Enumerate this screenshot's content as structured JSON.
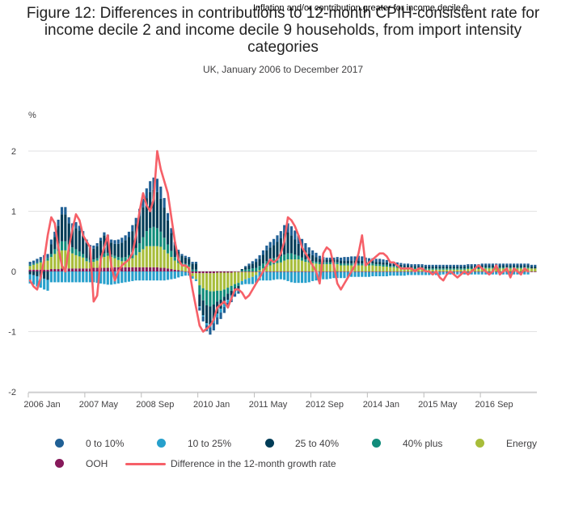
{
  "title": "Figure 12: Differences in contributions to 12-month CPIH-consistent rate for income decile 2 and income decile 9 households, from import intensity categories",
  "annotation": "Inflation and/or contribution greater for income decile 9",
  "subtitle": "UK, January 2006 to December 2017",
  "y_unit": "%",
  "colors": {
    "c0_10": "#206095",
    "c10_25": "#27a0cc",
    "c25_40": "#003c57",
    "c40plus": "#118c7b",
    "energy": "#a8bd3a",
    "ooh": "#871a5b",
    "diff": "#f66068"
  },
  "legend": [
    {
      "label": "0 to 10%",
      "color": "#206095"
    },
    {
      "label": "10 to 25%",
      "color": "#27a0cc"
    },
    {
      "label": "25 to 40%",
      "color": "#003c57"
    },
    {
      "label": "40% plus",
      "color": "#118c7b"
    },
    {
      "label": "Energy",
      "color": "#a8bd3a"
    },
    {
      "label": "OOH",
      "color": "#871a5b"
    },
    {
      "label": "Difference in the 12-month growth rate",
      "color": "#f66068"
    }
  ],
  "chart_data": {
    "type": "bar",
    "stacked": true,
    "x_start": "2006-01",
    "x_end": "2017-12",
    "x_ticks": [
      "2006 Jan",
      "2007 May",
      "2008 Sep",
      "2010 Jan",
      "2011 May",
      "2012 Sep",
      "2014 Jan",
      "2015 May",
      "2016 Sep"
    ],
    "y_ticks": [
      "-2",
      "-1",
      "0",
      "1",
      "2"
    ],
    "ylim": [
      -2,
      2.2
    ],
    "grid": true,
    "legend_position": "bottom",
    "series": [
      {
        "name": "0 to 10%",
        "values": [
          0.05,
          0.05,
          0.06,
          0.06,
          0.07,
          0.07,
          0.08,
          0.09,
          0.1,
          0.12,
          0.12,
          0.1,
          0.1,
          0.1,
          0.08,
          0.08,
          0.06,
          0.05,
          0.05,
          0.05,
          0.05,
          0.05,
          0.05,
          0.05,
          0.06,
          0.07,
          0.08,
          0.08,
          0.09,
          0.1,
          0.1,
          0.12,
          0.14,
          0.16,
          0.18,
          0.2,
          0.22,
          0.2,
          0.16,
          0.12,
          0.08,
          0.05,
          0.03,
          0.03,
          0.03,
          0.03,
          0.03,
          0.03,
          -0.05,
          -0.08,
          -0.1,
          -0.12,
          -0.12,
          -0.12,
          -0.11,
          -0.1,
          -0.08,
          -0.06,
          -0.05,
          -0.04,
          0.0,
          0.02,
          0.03,
          0.04,
          0.05,
          0.06,
          0.07,
          0.08,
          0.09,
          0.1,
          0.11,
          0.12,
          0.14,
          0.15,
          0.15,
          0.15,
          0.14,
          0.13,
          0.12,
          0.1,
          0.08,
          0.07,
          0.05,
          0.04,
          0.03,
          0.03,
          0.03,
          0.04,
          0.05,
          0.06,
          0.06,
          0.07,
          0.07,
          0.08,
          0.07,
          0.06,
          0.05,
          0.05,
          0.05,
          0.05,
          0.05,
          0.04,
          0.04,
          0.04,
          0.04,
          0.03,
          0.03,
          0.03,
          0.03,
          0.03,
          0.03,
          0.03,
          0.03,
          0.03,
          0.03,
          0.03,
          0.03,
          0.03,
          0.03,
          0.03,
          0.03,
          0.03,
          0.03,
          0.03,
          0.03,
          0.03,
          0.03,
          0.03,
          0.03,
          0.03,
          0.03,
          0.03,
          0.03,
          0.03,
          0.03,
          0.03,
          0.03,
          0.03,
          0.03,
          0.03,
          0.03,
          0.03,
          0.03,
          0.03
        ]
      },
      {
        "name": "10 to 25%",
        "values": [
          -0.15,
          -0.16,
          -0.17,
          -0.17,
          -0.18,
          -0.18,
          -0.18,
          -0.18,
          -0.18,
          -0.18,
          -0.18,
          -0.18,
          -0.18,
          -0.18,
          -0.18,
          -0.18,
          -0.18,
          -0.18,
          -0.18,
          -0.19,
          -0.2,
          -0.21,
          -0.22,
          -0.22,
          -0.21,
          -0.2,
          -0.19,
          -0.18,
          -0.17,
          -0.16,
          -0.15,
          -0.15,
          -0.15,
          -0.15,
          -0.15,
          -0.15,
          -0.15,
          -0.15,
          -0.15,
          -0.14,
          -0.13,
          -0.12,
          -0.1,
          -0.08,
          -0.06,
          -0.05,
          -0.04,
          -0.03,
          -0.02,
          -0.02,
          -0.03,
          -0.05,
          -0.06,
          -0.06,
          -0.06,
          -0.05,
          -0.05,
          -0.05,
          -0.04,
          -0.04,
          -0.06,
          -0.08,
          -0.1,
          -0.12,
          -0.13,
          -0.14,
          -0.14,
          -0.14,
          -0.14,
          -0.13,
          -0.12,
          -0.12,
          -0.13,
          -0.15,
          -0.17,
          -0.18,
          -0.18,
          -0.18,
          -0.18,
          -0.17,
          -0.15,
          -0.14,
          -0.13,
          -0.12,
          -0.12,
          -0.11,
          -0.1,
          -0.1,
          -0.1,
          -0.1,
          -0.09,
          -0.08,
          -0.08,
          -0.08,
          -0.08,
          -0.08,
          -0.08,
          -0.07,
          -0.07,
          -0.07,
          -0.07,
          -0.07,
          -0.06,
          -0.06,
          -0.06,
          -0.06,
          -0.06,
          -0.05,
          -0.05,
          -0.05,
          -0.05,
          -0.05,
          -0.05,
          -0.05,
          -0.05,
          -0.05,
          -0.05,
          -0.04,
          -0.04,
          -0.04,
          -0.04,
          -0.04,
          -0.04,
          -0.04,
          -0.04,
          -0.04,
          -0.04,
          -0.04,
          -0.04,
          -0.04,
          -0.04,
          -0.04,
          -0.04,
          -0.04,
          -0.04,
          -0.04,
          -0.04,
          -0.04,
          -0.04,
          -0.04,
          -0.04,
          -0.04
        ]
      },
      {
        "name": "25 to 40%",
        "values": [
          -0.05,
          -0.06,
          -0.08,
          -0.1,
          -0.12,
          -0.14,
          0.16,
          0.2,
          0.3,
          0.45,
          0.45,
          0.35,
          0.3,
          0.35,
          0.35,
          0.3,
          0.25,
          0.2,
          0.18,
          0.2,
          0.25,
          0.3,
          0.25,
          0.2,
          0.2,
          0.22,
          0.25,
          0.28,
          0.3,
          0.35,
          0.4,
          0.45,
          0.5,
          0.55,
          0.6,
          0.62,
          0.6,
          0.55,
          0.5,
          0.4,
          0.3,
          0.2,
          0.15,
          0.12,
          0.1,
          0.1,
          0.1,
          0.1,
          -0.2,
          -0.25,
          -0.3,
          -0.3,
          -0.25,
          -0.2,
          -0.15,
          -0.12,
          -0.1,
          -0.08,
          -0.06,
          -0.05,
          0.02,
          0.04,
          0.06,
          0.08,
          0.1,
          0.12,
          0.15,
          0.18,
          0.2,
          0.22,
          0.25,
          0.3,
          0.35,
          0.35,
          0.3,
          0.25,
          0.2,
          0.18,
          0.15,
          0.12,
          0.1,
          0.08,
          0.06,
          0.05,
          0.05,
          0.05,
          0.05,
          0.05,
          0.05,
          0.05,
          0.05,
          0.05,
          0.05,
          0.05,
          0.05,
          0.04,
          0.04,
          0.04,
          0.04,
          0.04,
          0.04,
          0.04,
          0.03,
          0.03,
          0.03,
          0.03,
          0.03,
          0.03,
          0.03,
          0.03,
          0.03,
          0.03,
          0.03,
          0.03,
          0.03,
          0.03,
          0.03,
          0.03,
          0.03,
          0.03,
          0.03,
          0.03,
          0.03,
          0.03,
          0.03,
          0.03,
          0.03,
          0.03,
          0.03,
          0.03,
          0.03,
          0.03,
          0.03,
          0.03,
          0.03,
          0.03,
          0.03,
          0.03,
          0.03,
          0.03,
          0.03,
          0.03,
          0.03,
          0.03
        ]
      },
      {
        "name": "40% plus",
        "values": [
          0.02,
          0.02,
          0.02,
          0.03,
          0.03,
          0.04,
          0.05,
          0.08,
          0.12,
          0.15,
          0.15,
          0.12,
          0.1,
          0.1,
          0.08,
          0.06,
          0.05,
          0.04,
          0.04,
          0.04,
          0.05,
          0.06,
          0.05,
          0.04,
          0.04,
          0.05,
          0.06,
          0.07,
          0.08,
          0.1,
          0.12,
          0.15,
          0.2,
          0.25,
          0.3,
          0.32,
          0.3,
          0.25,
          0.2,
          0.15,
          0.1,
          0.06,
          0.04,
          0.03,
          0.03,
          0.03,
          0.03,
          0.03,
          -0.15,
          -0.2,
          -0.25,
          -0.25,
          -0.22,
          -0.18,
          -0.15,
          -0.12,
          -0.1,
          -0.08,
          -0.06,
          -0.05,
          0.02,
          0.03,
          0.04,
          0.05,
          0.06,
          0.07,
          0.08,
          0.09,
          0.1,
          0.1,
          0.1,
          0.1,
          0.1,
          0.1,
          0.1,
          0.08,
          0.06,
          0.05,
          0.04,
          0.03,
          0.03,
          0.03,
          0.03,
          0.03,
          0.03,
          0.03,
          0.03,
          0.03,
          0.03,
          0.03,
          0.03,
          0.03,
          0.03,
          0.03,
          0.03,
          0.03,
          0.03,
          0.03,
          0.03,
          0.03,
          0.03,
          0.03,
          0.02,
          0.02,
          0.02,
          0.02,
          0.02,
          0.02,
          0.02,
          0.02,
          0.02,
          0.02,
          0.02,
          0.02,
          0.02,
          0.02,
          0.02,
          0.02,
          0.02,
          0.02,
          0.02,
          0.02,
          0.02,
          0.02,
          0.02,
          0.02,
          0.02,
          0.02,
          0.02,
          0.02,
          0.02,
          0.02,
          0.02,
          0.02,
          0.02,
          0.02,
          0.02,
          0.02,
          0.02,
          0.02,
          0.02,
          0.02
        ]
      },
      {
        "name": "Energy",
        "values": [
          0.06,
          0.08,
          0.1,
          0.12,
          0.14,
          0.15,
          0.2,
          0.25,
          0.3,
          0.3,
          0.3,
          0.28,
          0.25,
          0.22,
          0.2,
          0.18,
          0.12,
          0.1,
          0.1,
          0.12,
          0.15,
          0.18,
          0.2,
          0.18,
          0.15,
          0.12,
          0.1,
          0.1,
          0.12,
          0.15,
          0.2,
          0.25,
          0.3,
          0.35,
          0.35,
          0.35,
          0.35,
          0.35,
          0.3,
          0.25,
          0.2,
          0.15,
          0.12,
          0.1,
          0.1,
          0.08,
          -0.05,
          -0.1,
          -0.2,
          -0.25,
          -0.28,
          -0.3,
          -0.3,
          -0.3,
          -0.3,
          -0.28,
          -0.25,
          -0.22,
          -0.2,
          -0.18,
          -0.15,
          -0.12,
          -0.1,
          -0.08,
          -0.05,
          0.02,
          0.05,
          0.08,
          0.1,
          0.12,
          0.14,
          0.15,
          0.18,
          0.2,
          0.2,
          0.2,
          0.2,
          0.18,
          0.16,
          0.15,
          0.14,
          0.13,
          0.12,
          0.12,
          0.12,
          0.12,
          0.12,
          0.12,
          0.1,
          0.1,
          0.1,
          0.1,
          0.1,
          0.1,
          0.1,
          0.1,
          0.1,
          0.1,
          0.09,
          0.09,
          0.08,
          0.08,
          0.07,
          0.07,
          0.06,
          0.06,
          0.05,
          0.05,
          0.04,
          0.04,
          0.04,
          0.04,
          0.03,
          0.03,
          0.03,
          0.03,
          0.03,
          0.03,
          0.03,
          0.03,
          0.03,
          0.03,
          0.03,
          0.03,
          0.04,
          0.04,
          0.04,
          0.04,
          0.05,
          0.05,
          0.05,
          0.05,
          0.05,
          0.05,
          0.05,
          0.05,
          0.05,
          0.05,
          0.05,
          0.05,
          0.05,
          0.05,
          0.05,
          0.05
        ]
      },
      {
        "name": "OOH",
        "values": [
          0.03,
          0.03,
          0.03,
          0.03,
          0.03,
          0.03,
          0.04,
          0.04,
          0.04,
          0.05,
          0.05,
          0.05,
          0.05,
          0.05,
          0.05,
          0.05,
          0.05,
          0.05,
          0.06,
          0.06,
          0.06,
          0.06,
          0.06,
          0.06,
          0.07,
          0.07,
          0.07,
          0.07,
          0.07,
          0.07,
          0.07,
          0.07,
          0.07,
          0.07,
          0.07,
          0.07,
          0.07,
          0.06,
          0.06,
          0.05,
          0.04,
          0.03,
          0.02,
          0.01,
          -0.01,
          -0.02,
          -0.03,
          -0.03,
          -0.03,
          -0.03,
          -0.03,
          -0.03,
          -0.03,
          -0.02,
          -0.02,
          -0.02,
          -0.02,
          -0.02,
          -0.01,
          -0.01,
          -0.01,
          -0.01,
          -0.01,
          -0.01,
          -0.01,
          -0.01,
          -0.01,
          -0.01,
          -0.01,
          -0.01,
          -0.01,
          -0.01,
          -0.01,
          -0.01,
          -0.01,
          -0.01,
          -0.01,
          -0.01,
          -0.01,
          -0.01,
          -0.01,
          -0.01,
          -0.01,
          -0.01,
          -0.01,
          -0.01,
          -0.01,
          -0.01,
          -0.01,
          -0.01,
          -0.01,
          -0.01,
          -0.01,
          -0.01,
          -0.01,
          -0.01,
          -0.01,
          -0.01,
          -0.01,
          -0.01,
          -0.01,
          -0.01,
          -0.01,
          -0.01,
          -0.01,
          -0.01,
          -0.01,
          -0.01,
          -0.01,
          -0.01,
          -0.01,
          -0.01,
          -0.01,
          -0.01,
          -0.01,
          -0.01,
          -0.01,
          -0.01,
          -0.01,
          -0.01,
          -0.01,
          -0.01,
          -0.01,
          -0.01,
          -0.01,
          -0.01,
          -0.01,
          -0.01,
          -0.01,
          -0.01,
          -0.01,
          -0.01,
          -0.01,
          -0.01,
          -0.01,
          -0.01,
          -0.01,
          -0.01,
          -0.01,
          -0.01,
          -0.01,
          -0.01,
          -0.01,
          -0.01
        ]
      },
      {
        "name": "Difference in the 12-month growth rate",
        "type": "line",
        "values": [
          -0.15,
          -0.25,
          -0.3,
          -0.1,
          0.2,
          0.6,
          0.9,
          0.8,
          0.4,
          0.1,
          0.0,
          0.4,
          0.7,
          0.95,
          0.85,
          0.6,
          0.5,
          0.4,
          -0.5,
          -0.4,
          0.2,
          0.4,
          0.6,
          0.1,
          -0.15,
          0.0,
          0.1,
          0.15,
          0.2,
          0.3,
          0.6,
          1.0,
          1.3,
          1.1,
          1.0,
          1.2,
          2.0,
          1.7,
          1.5,
          1.3,
          0.9,
          0.5,
          0.2,
          0.1,
          0.1,
          0.05,
          -0.3,
          -0.6,
          -0.9,
          -1.0,
          -0.95,
          -0.9,
          -0.8,
          -0.6,
          -0.55,
          -0.5,
          -0.6,
          -0.45,
          -0.3,
          -0.3,
          -0.35,
          -0.45,
          -0.4,
          -0.3,
          -0.2,
          -0.1,
          0.0,
          0.1,
          0.2,
          0.15,
          0.2,
          0.3,
          0.5,
          0.9,
          0.85,
          0.75,
          0.6,
          0.4,
          0.3,
          0.2,
          0.1,
          0.0,
          -0.2,
          0.3,
          0.4,
          0.35,
          0.1,
          -0.2,
          -0.3,
          -0.2,
          -0.1,
          0.0,
          0.1,
          0.3,
          0.6,
          0.1,
          0.15,
          0.2,
          0.25,
          0.3,
          0.3,
          0.25,
          0.15,
          0.15,
          0.1,
          0.05,
          0.05,
          0.05,
          0.05,
          0.0,
          0.05,
          0.05,
          0.0,
          0.0,
          -0.05,
          0.0,
          -0.1,
          -0.15,
          -0.05,
          0.0,
          -0.05,
          -0.1,
          -0.05,
          0.0,
          -0.05,
          0.0,
          0.05,
          0.1,
          0.05,
          0.0,
          -0.05,
          0.0,
          0.1,
          -0.05,
          0.0,
          0.05,
          -0.1,
          0.05,
          0.0,
          -0.05,
          0.05,
          0.0
        ]
      }
    ]
  }
}
